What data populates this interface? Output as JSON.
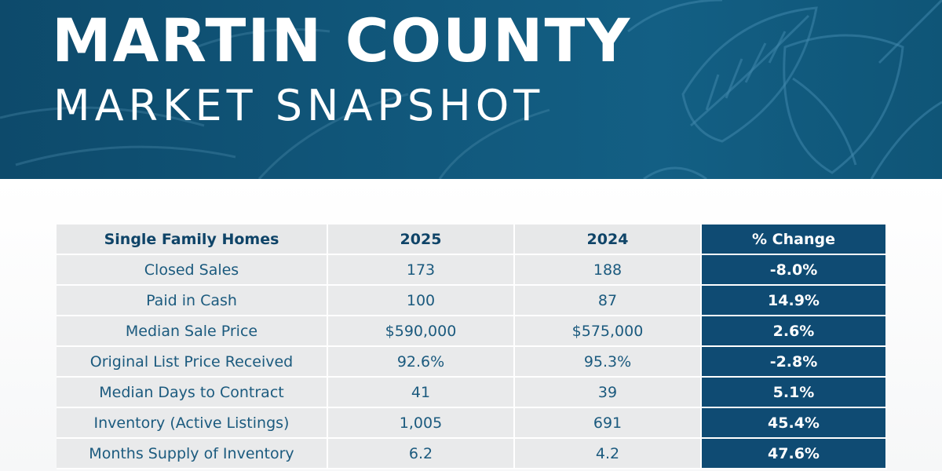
{
  "header": {
    "title": "MARTIN COUNTY",
    "subtitle": "MARKET SNAPSHOT"
  },
  "colors": {
    "banner": "#11587c",
    "accent": "#0f4b73",
    "row_bg": "#e9eaeb",
    "text": "#1b5a7e"
  },
  "table": {
    "headers": {
      "label": "Single Family Homes",
      "y2025": "2025",
      "y2024": "2024",
      "change": "% Change"
    },
    "rows": [
      {
        "label": "Closed Sales",
        "y2025": "173",
        "y2024": "188",
        "change": "-8.0%"
      },
      {
        "label": "Paid in Cash",
        "y2025": "100",
        "y2024": "87",
        "change": "14.9%"
      },
      {
        "label": "Median Sale Price",
        "y2025": "$590,000",
        "y2024": "$575,000",
        "change": "2.6%"
      },
      {
        "label": "Original List Price Received",
        "y2025": "92.6%",
        "y2024": "95.3%",
        "change": "-2.8%"
      },
      {
        "label": "Median Days to Contract",
        "y2025": "41",
        "y2024": "39",
        "change": "5.1%"
      },
      {
        "label": "Inventory (Active Listings)",
        "y2025": "1,005",
        "y2024": "691",
        "change": "45.4%"
      },
      {
        "label": "Months Supply of Inventory",
        "y2025": "6.2",
        "y2024": "4.2",
        "change": "47.6%"
      }
    ]
  }
}
